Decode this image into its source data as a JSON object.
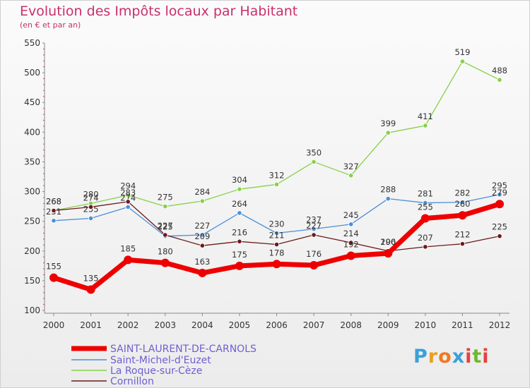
{
  "chart_data": {
    "type": "line",
    "title": "Evolution des Impôts locaux par Habitant",
    "subtitle": "(en € et par an)",
    "categories": [
      "2000",
      "2001",
      "2002",
      "2003",
      "2004",
      "2005",
      "2006",
      "2007",
      "2008",
      "2009",
      "2010",
      "2011",
      "2012"
    ],
    "ylim": [
      100,
      550
    ],
    "yticks": [
      100,
      150,
      200,
      250,
      300,
      350,
      400,
      450,
      500,
      550
    ],
    "grid": false,
    "legend_position": "bottom-left",
    "series": [
      {
        "name": "La Roque-sur-Cèze",
        "color": "#88d048",
        "values": [
          268,
          280,
          294,
          275,
          284,
          304,
          312,
          350,
          327,
          399,
          411,
          519,
          488
        ],
        "labels": [
          "268",
          "280",
          "294",
          "275",
          "284",
          "304",
          "312",
          "350",
          "327",
          "399",
          "411",
          "519",
          "488"
        ]
      },
      {
        "name": "Saint-Michel-d'Euzet",
        "color": "#4a8fd8",
        "values": [
          251,
          255,
          274,
          225,
          227,
          264,
          230,
          237,
          245,
          288,
          281,
          282,
          295
        ],
        "labels": [
          "251",
          "255",
          "274",
          "225",
          "227",
          "264",
          "230",
          "237",
          "245",
          "288",
          "281",
          "282",
          "295"
        ]
      },
      {
        "name": "Cornillon",
        "color": "#6b1a1a",
        "values": [
          268,
          274,
          283,
          227,
          209,
          216,
          211,
          227,
          214,
          200,
          207,
          212,
          225
        ],
        "labels": [
          "268",
          "274",
          "283",
          "227",
          "209",
          "216",
          "211",
          "227",
          "214",
          "200",
          "207",
          "212",
          "225"
        ]
      },
      {
        "name": "SAINT-LAURENT-DE-CARNOLS",
        "color": "#ee0000",
        "values": [
          155,
          135,
          185,
          180,
          163,
          175,
          178,
          176,
          192,
          196,
          255,
          260,
          279
        ],
        "labels": [
          "155",
          "135",
          "185",
          "180",
          "163",
          "175",
          "178",
          "176",
          "192",
          "196",
          "255",
          "260",
          "279"
        ]
      }
    ],
    "legend": [
      "SAINT-LAURENT-DE-CARNOLS",
      "Saint-Michel-d'Euzet",
      "La Roque-sur-Cèze",
      "Cornillon"
    ]
  },
  "branding": {
    "letters": [
      "P",
      "r",
      "o",
      "x",
      "i",
      "t",
      "i"
    ],
    "colors": [
      "#3aa0d8",
      "#e8a020",
      "#f07a20",
      "#3aa0d8",
      "#e84040",
      "#70b830",
      "#e84040"
    ]
  }
}
